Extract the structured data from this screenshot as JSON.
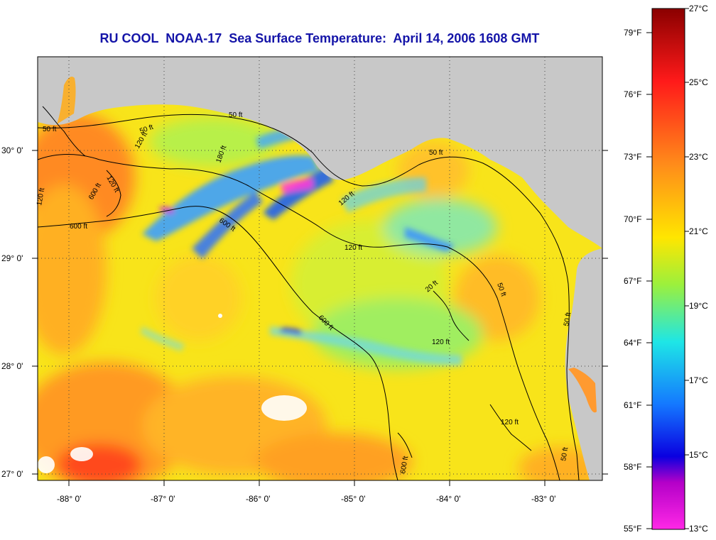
{
  "title": "RU COOL  NOAA-17  Sea Surface Temperature:  April 14, 2006 1608 GMT",
  "lat_labels": [
    "30° 0'",
    "29° 0'",
    "28° 0'",
    "27° 0'"
  ],
  "lon_labels": [
    "-88° 0'",
    "-87° 0'",
    "-86° 0'",
    "-85° 0'",
    "-84° 0'",
    "-83° 0'"
  ],
  "contour_labels": [
    "50 ft",
    "50 ft",
    "50 ft",
    "50 ft",
    "50 ft",
    "50 ft",
    "50 ft",
    "120 ft",
    "120 ft",
    "120 ft",
    "120 ft",
    "120 ft",
    "120 ft",
    "600 ft",
    "600 ft",
    "600 ft",
    "600 ft",
    "600 ft",
    "180 ft",
    "20 ft",
    "120 ft"
  ],
  "colorbar": {
    "fahrenheit": [
      "79°F",
      "76°F",
      "73°F",
      "70°F",
      "67°F",
      "64°F",
      "61°F",
      "58°F",
      "55°F"
    ],
    "celsius": [
      "27°C",
      "25°C",
      "23°C",
      "21°C",
      "19°C",
      "17°C",
      "15°C",
      "13°C"
    ],
    "colors": [
      "#8a0000",
      "#ff1a1a",
      "#ff8c1a",
      "#ffe600",
      "#9cf03c",
      "#1ee6e6",
      "#1478ff",
      "#0a00e0",
      "#b400c8",
      "#ff28e6"
    ]
  },
  "colors": {
    "land": "#c8c8c8",
    "title": "#1414a8",
    "warm_sst": "#ffa020",
    "mid_sst": "#ffe010",
    "cool_sst": "#30c8ff",
    "cold_sst": "#1030f0"
  }
}
